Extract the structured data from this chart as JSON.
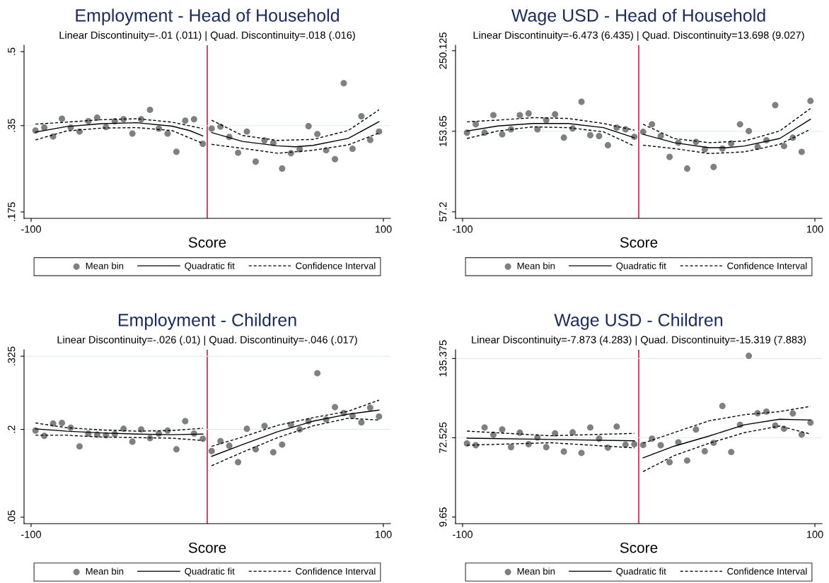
{
  "chart_data": [
    {
      "type": "scatter",
      "title": "Employment - Head of Household",
      "subtitle": "Linear Discontinuity=-.01 (.011) | Quad. Discontinuity=.018 (.016)",
      "xlabel": "Score",
      "xlim": [
        -104,
        104
      ],
      "xticks": [
        -100,
        100
      ],
      "ylim": [
        0.162,
        0.513
      ],
      "yticks": [
        {
          "value": 0.175,
          "label": ".175"
        },
        {
          "value": 0.35,
          "label": ".35"
        },
        {
          "value": 0.5,
          "label": ".5"
        }
      ],
      "legend": "bottom",
      "grid": false,
      "ref_lines": [
        {
          "axis": "x",
          "value": 0,
          "color": "#d0204f"
        },
        {
          "axis": "y",
          "value": 0.35,
          "color": "#e2ecec"
        }
      ],
      "series": [
        {
          "name": "Mean bin",
          "type": "scatter",
          "marker": "circle",
          "color": "#808080",
          "x": [
            -97.5,
            -92.5,
            -87.5,
            -82.5,
            -77.5,
            -72.5,
            -67.5,
            -62.5,
            -57.5,
            -52.5,
            -47.5,
            -42.5,
            -37.5,
            -32.5,
            -27.5,
            -22.5,
            -17.5,
            -12.5,
            -7.5,
            -2.5,
            2.5,
            7.5,
            12.5,
            17.5,
            22.5,
            27.5,
            32.5,
            37.5,
            42.5,
            47.5,
            52.5,
            57.5,
            62.5,
            67.5,
            72.5,
            77.5,
            82.5,
            87.5,
            92.5,
            97.5
          ],
          "values": [
            0.34,
            0.346,
            0.328,
            0.364,
            0.346,
            0.338,
            0.359,
            0.366,
            0.347,
            0.359,
            0.363,
            0.334,
            0.363,
            0.382,
            0.344,
            0.334,
            0.297,
            0.36,
            0.363,
            0.313,
            0.344,
            0.348,
            0.327,
            0.295,
            0.338,
            0.277,
            0.32,
            0.315,
            0.263,
            0.294,
            0.302,
            0.349,
            0.333,
            0.3,
            0.282,
            0.436,
            0.303,
            0.369,
            0.321,
            0.338
          ]
        },
        {
          "name": "Quadratic fit",
          "type": "line",
          "line_style": "solid",
          "color": "#000000",
          "x": [
            -97.5,
            -80,
            -60,
            -40,
            -20,
            -10,
            -2.5
          ],
          "values": [
            0.337,
            0.348,
            0.354,
            0.356,
            0.349,
            0.34,
            0.329
          ]
        },
        {
          "name": "Confidence Interval",
          "type": "line",
          "line_style": "dashed",
          "color": "#000000",
          "x": [
            -97.5,
            -80,
            -60,
            -40,
            -20,
            -2.5
          ],
          "values": [
            0.353,
            0.357,
            0.362,
            0.364,
            0.357,
            0.344
          ]
        },
        {
          "type": "line",
          "line_style": "dashed",
          "color": "#000000",
          "x": [
            -97.5,
            -80,
            -60,
            -40,
            -20,
            -2.5
          ],
          "values": [
            0.321,
            0.339,
            0.345,
            0.346,
            0.34,
            0.314
          ]
        },
        {
          "type": "line",
          "line_style": "solid",
          "color": "#000000",
          "x": [
            2.5,
            20,
            40,
            50,
            60,
            80,
            97.5
          ],
          "values": [
            0.336,
            0.318,
            0.309,
            0.307,
            0.31,
            0.324,
            0.358
          ]
        },
        {
          "type": "line",
          "line_style": "dashed",
          "color": "#000000",
          "x": [
            2.5,
            20,
            40,
            60,
            80,
            97.5
          ],
          "values": [
            0.361,
            0.33,
            0.32,
            0.322,
            0.34,
            0.382
          ]
        },
        {
          "type": "line",
          "line_style": "dashed",
          "color": "#000000",
          "x": [
            2.5,
            20,
            40,
            60,
            80,
            97.5
          ],
          "values": [
            0.312,
            0.304,
            0.294,
            0.3,
            0.311,
            0.335
          ]
        }
      ]
    },
    {
      "type": "scatter",
      "title": "Wage USD - Head of Household",
      "subtitle": "Linear Discontinuity=-6.473 (6.435) | Quad. Discontinuity=13.698 (9.027)",
      "xlabel": "Score",
      "xlim": [
        -104,
        104
      ],
      "xticks": [
        -100,
        100
      ],
      "ylim": [
        49.4,
        256.7
      ],
      "yticks": [
        57.2,
        153.65,
        250.125
      ],
      "legend": "bottom",
      "grid": false,
      "ref_lines": [
        {
          "axis": "x",
          "value": 0,
          "color": "#d0204f"
        },
        {
          "axis": "y",
          "value": 153.65,
          "color": "#e2ecec"
        }
      ],
      "series": [
        {
          "name": "Mean bin",
          "type": "scatter",
          "marker": "circle",
          "color": "#808080",
          "x": [
            -97.5,
            -92.5,
            -87.5,
            -82.5,
            -77.5,
            -72.5,
            -67.5,
            -62.5,
            -57.5,
            -52.5,
            -47.5,
            -42.5,
            -37.5,
            -32.5,
            -27.5,
            -22.5,
            -17.5,
            -12.5,
            -7.5,
            -2.5,
            2.5,
            7.5,
            12.5,
            17.5,
            22.5,
            27.5,
            32.5,
            37.5,
            42.5,
            47.5,
            52.5,
            57.5,
            62.5,
            67.5,
            72.5,
            77.5,
            82.5,
            87.5,
            92.5,
            97.5
          ],
          "values": [
            152,
            162,
            152,
            173,
            150,
            156,
            173,
            175,
            156,
            167,
            174,
            146,
            157,
            189,
            149,
            148,
            137,
            158,
            156,
            147,
            153,
            162,
            148,
            123,
            140,
            109,
            141,
            132,
            111,
            133,
            139,
            162,
            154,
            135,
            143,
            185,
            136,
            146,
            129,
            190
          ]
        },
        {
          "name": "Quadratic fit",
          "type": "line",
          "line_style": "solid",
          "color": "#000000",
          "x": [
            -97.5,
            -80,
            -60,
            -40,
            -20,
            -2.5
          ],
          "values": [
            154,
            160,
            163,
            163,
            158,
            146
          ]
        },
        {
          "name": "Confidence Interval",
          "type": "line",
          "line_style": "dashed",
          "color": "#000000",
          "x": [
            -97.5,
            -80,
            -60,
            -40,
            -20,
            -2.5
          ],
          "values": [
            165,
            167,
            170,
            169,
            163,
            155
          ]
        },
        {
          "type": "line",
          "line_style": "dashed",
          "color": "#000000",
          "x": [
            -97.5,
            -80,
            -60,
            -40,
            -20,
            -2.5
          ],
          "values": [
            145,
            154,
            159,
            158,
            153,
            136
          ]
        },
        {
          "type": "line",
          "line_style": "solid",
          "color": "#000000",
          "x": [
            2.5,
            20,
            40,
            50,
            60,
            80,
            97.5
          ],
          "values": [
            150,
            140,
            134,
            134,
            136,
            145,
            168
          ]
        },
        {
          "type": "line",
          "line_style": "dashed",
          "color": "#000000",
          "x": [
            2.5,
            20,
            40,
            60,
            80,
            97.5
          ],
          "values": [
            162,
            145,
            140,
            142,
            154,
            181
          ]
        },
        {
          "type": "line",
          "line_style": "dashed",
          "color": "#000000",
          "x": [
            2.5,
            20,
            40,
            60,
            80,
            97.5
          ],
          "values": [
            137,
            133,
            127,
            129,
            138,
            156
          ]
        }
      ]
    },
    {
      "type": "scatter",
      "title": "Employment - Children",
      "subtitle": "Linear Discontinuity=-.026 (.01) | Quad. Discontinuity=-.046 (.017)",
      "xlabel": "Score",
      "xlim": [
        -104,
        104
      ],
      "xticks": [
        -100,
        100
      ],
      "ylim": [
        0.039,
        0.336
      ],
      "yticks": [
        {
          "value": 0.05,
          "label": ".05"
        },
        {
          "value": 0.2,
          "label": ".2"
        },
        {
          "value": 0.325,
          "label": ".325"
        }
      ],
      "legend": "bottom",
      "grid": false,
      "ref_lines": [
        {
          "axis": "x",
          "value": 0,
          "color": "#d0204f"
        },
        {
          "axis": "y",
          "value": 0.2,
          "color": "#e2ecec"
        },
        {
          "axis": "y",
          "value": 0.325,
          "color": "#e2ecec"
        }
      ],
      "series": [
        {
          "name": "Mean bin",
          "type": "scatter",
          "marker": "circle",
          "color": "#808080",
          "x": [
            -97.5,
            -92.5,
            -87.5,
            -82.5,
            -77.5,
            -72.5,
            -67.5,
            -62.5,
            -57.5,
            -52.5,
            -47.5,
            -42.5,
            -37.5,
            -32.5,
            -27.5,
            -22.5,
            -17.5,
            -12.5,
            -7.5,
            -2.5,
            2.5,
            7.5,
            12.5,
            17.5,
            22.5,
            27.5,
            32.5,
            37.5,
            42.5,
            47.5,
            52.5,
            57.5,
            62.5,
            67.5,
            72.5,
            77.5,
            82.5,
            87.5,
            92.5,
            97.5
          ],
          "values": [
            0.198,
            0.189,
            0.21,
            0.211,
            0.203,
            0.171,
            0.193,
            0.191,
            0.19,
            0.192,
            0.201,
            0.179,
            0.2,
            0.185,
            0.193,
            0.198,
            0.166,
            0.214,
            0.193,
            0.184,
            0.163,
            0.18,
            0.172,
            0.144,
            0.201,
            0.166,
            0.206,
            0.161,
            0.174,
            0.208,
            0.2,
            0.214,
            0.296,
            0.217,
            0.238,
            0.228,
            0.223,
            0.212,
            0.237,
            0.222
          ]
        },
        {
          "name": "Quadratic fit",
          "type": "line",
          "line_style": "solid",
          "color": "#000000",
          "x": [
            -97.5,
            -80,
            -60,
            -40,
            -20,
            -2.5
          ],
          "values": [
            0.201,
            0.197,
            0.194,
            0.192,
            0.191,
            0.192
          ]
        },
        {
          "name": "Confidence Interval",
          "type": "line",
          "line_style": "dashed",
          "color": "#000000",
          "x": [
            -97.5,
            -80,
            -60,
            -40,
            -20,
            -2.5
          ],
          "values": [
            0.211,
            0.203,
            0.199,
            0.197,
            0.198,
            0.202
          ]
        },
        {
          "type": "line",
          "line_style": "dashed",
          "color": "#000000",
          "x": [
            -97.5,
            -80,
            -60,
            -40,
            -20,
            -2.5
          ],
          "values": [
            0.19,
            0.19,
            0.187,
            0.186,
            0.185,
            0.181
          ]
        },
        {
          "type": "line",
          "line_style": "solid",
          "color": "#000000",
          "x": [
            2.5,
            20,
            40,
            60,
            80,
            97.5
          ],
          "values": [
            0.154,
            0.174,
            0.196,
            0.214,
            0.226,
            0.233
          ]
        },
        {
          "type": "line",
          "line_style": "dashed",
          "color": "#000000",
          "x": [
            2.5,
            20,
            40,
            60,
            80,
            97.5
          ],
          "values": [
            0.171,
            0.187,
            0.207,
            0.22,
            0.231,
            0.25
          ]
        },
        {
          "type": "line",
          "line_style": "dashed",
          "color": "#000000",
          "x": [
            2.5,
            20,
            40,
            60,
            80,
            97.5
          ],
          "values": [
            0.138,
            0.161,
            0.186,
            0.206,
            0.219,
            0.216
          ]
        }
      ]
    },
    {
      "type": "scatter",
      "title": "Wage USD - Children",
      "subtitle": "Linear Discontinuity=-7.873 (4.283) | Quad. Discontinuity=-15.319 (7.883)",
      "xlabel": "Score",
      "xlim": [
        -104,
        104
      ],
      "xticks": [
        -100,
        100
      ],
      "ylim": [
        4.4,
        142.3
      ],
      "yticks": [
        9.65,
        72.525,
        135.375
      ],
      "legend": "bottom",
      "grid": false,
      "ref_lines": [
        {
          "axis": "x",
          "value": 0,
          "color": "#d0204f"
        },
        {
          "axis": "y",
          "value": 72.525,
          "color": "#e2ecec"
        },
        {
          "axis": "y",
          "value": 135.375,
          "color": "#e2ecec"
        }
      ],
      "series": [
        {
          "name": "Mean bin",
          "type": "scatter",
          "marker": "circle",
          "color": "#808080",
          "x": [
            -97.5,
            -92.5,
            -87.5,
            -82.5,
            -77.5,
            -72.5,
            -67.5,
            -62.5,
            -57.5,
            -52.5,
            -47.5,
            -42.5,
            -37.5,
            -32.5,
            -27.5,
            -22.5,
            -17.5,
            -12.5,
            -7.5,
            -2.5,
            2.5,
            7.5,
            12.5,
            17.5,
            22.5,
            27.5,
            32.5,
            37.5,
            42.5,
            47.5,
            52.5,
            57.5,
            62.5,
            67.5,
            72.5,
            77.5,
            82.5,
            87.5,
            92.5,
            97.5
          ],
          "values": [
            68.0,
            66.6,
            80.7,
            74.9,
            79.1,
            65.1,
            76.6,
            67.4,
            72.8,
            65.1,
            76.0,
            61.6,
            76.8,
            60.5,
            80.7,
            71.8,
            64.7,
            81.4,
            67.0,
            67.4,
            66.8,
            71.8,
            66.6,
            53.2,
            68.9,
            54.5,
            79.1,
            61.8,
            68.5,
            97.7,
            61.2,
            82.8,
            137.5,
            92.0,
            93.3,
            82.2,
            79.7,
            91.8,
            75.1,
            84.5
          ]
        },
        {
          "name": "Quadratic fit",
          "type": "line",
          "line_style": "solid",
          "color": "#000000",
          "x": [
            -97.5,
            -50,
            -2.5
          ],
          "values": [
            72.2,
            71.2,
            70.1
          ]
        },
        {
          "name": "Confidence Interval",
          "type": "line",
          "line_style": "dashed",
          "color": "#000000",
          "x": [
            -97.5,
            -50,
            -2.5
          ],
          "values": [
            77.8,
            74.1,
            76.0
          ]
        },
        {
          "type": "line",
          "line_style": "dashed",
          "color": "#000000",
          "x": [
            -97.5,
            -50,
            -2.5
          ],
          "values": [
            66.6,
            68.6,
            64.5
          ]
        },
        {
          "type": "line",
          "line_style": "solid",
          "color": "#000000",
          "x": [
            2.5,
            20,
            40,
            60,
            80,
            97.5
          ],
          "values": [
            56.6,
            65.8,
            73.9,
            82.8,
            87.2,
            86.6
          ]
        },
        {
          "type": "line",
          "line_style": "dashed",
          "color": "#000000",
          "x": [
            2.5,
            20,
            40,
            60,
            80,
            97.5
          ],
          "values": [
            68.2,
            76.6,
            86.0,
            90.8,
            93.3,
            97.4
          ]
        },
        {
          "type": "line",
          "line_style": "dashed",
          "color": "#000000",
          "x": [
            2.5,
            20,
            40,
            60,
            80,
            97.5
          ],
          "values": [
            45.7,
            58.3,
            68.2,
            76.6,
            81.8,
            75.5
          ]
        }
      ]
    }
  ]
}
